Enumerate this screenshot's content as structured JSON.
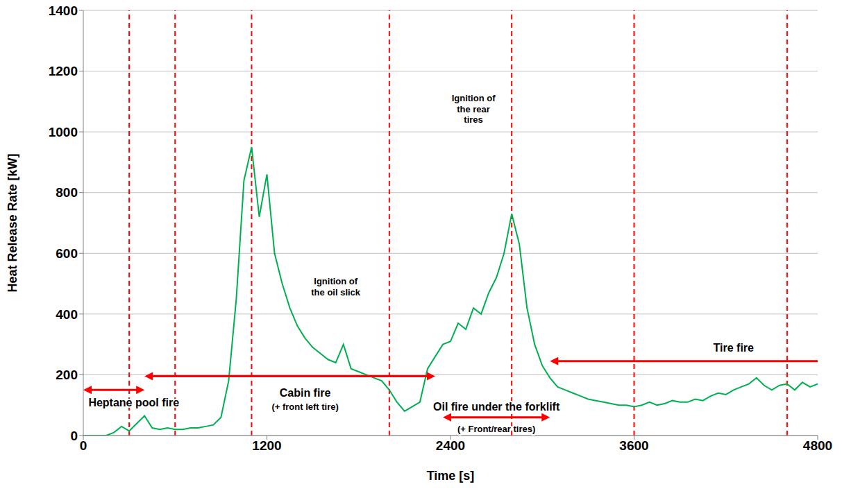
{
  "chart_data": {
    "type": "line",
    "xlabel": "Time [s]",
    "ylabel": "Heat Release Rate [kW]",
    "color": "#00b050",
    "grid": true,
    "xlim": [
      0,
      4800
    ],
    "xticks": [
      0,
      1200,
      2400,
      3600,
      4800
    ],
    "ylim": [
      0,
      1400
    ],
    "yticks": [
      0,
      200,
      400,
      600,
      800,
      1000,
      1200,
      1400
    ],
    "x": [
      0,
      50,
      100,
      150,
      200,
      250,
      300,
      350,
      400,
      450,
      500,
      550,
      600,
      650,
      700,
      750,
      800,
      850,
      900,
      950,
      1000,
      1050,
      1100,
      1150,
      1200,
      1250,
      1300,
      1350,
      1400,
      1450,
      1500,
      1550,
      1600,
      1650,
      1700,
      1750,
      1800,
      1850,
      1900,
      1950,
      2000,
      2050,
      2100,
      2150,
      2200,
      2250,
      2300,
      2350,
      2400,
      2450,
      2500,
      2550,
      2600,
      2650,
      2700,
      2750,
      2800,
      2850,
      2900,
      2950,
      3000,
      3050,
      3100,
      3150,
      3200,
      3250,
      3300,
      3350,
      3400,
      3450,
      3500,
      3550,
      3600,
      3650,
      3700,
      3750,
      3800,
      3850,
      3900,
      3950,
      4000,
      4050,
      4100,
      4150,
      4200,
      4250,
      4300,
      4350,
      4400,
      4450,
      4500,
      4550,
      4600,
      4650,
      4700,
      4750,
      4800
    ],
    "values": [
      0,
      0,
      0,
      0,
      10,
      30,
      15,
      40,
      65,
      25,
      20,
      25,
      20,
      20,
      25,
      25,
      30,
      35,
      60,
      180,
      450,
      840,
      950,
      720,
      860,
      600,
      500,
      420,
      360,
      320,
      290,
      270,
      250,
      240,
      300,
      220,
      210,
      200,
      190,
      180,
      150,
      110,
      80,
      95,
      110,
      220,
      260,
      300,
      310,
      370,
      350,
      420,
      400,
      470,
      520,
      600,
      730,
      630,
      420,
      300,
      230,
      190,
      160,
      150,
      140,
      130,
      120,
      115,
      110,
      105,
      100,
      100,
      95,
      100,
      110,
      100,
      105,
      115,
      110,
      110,
      120,
      115,
      130,
      140,
      135,
      150,
      160,
      170,
      190,
      165,
      150,
      165,
      170,
      150,
      175,
      160,
      170
    ],
    "reference_lines": [
      300,
      600,
      1100,
      2000,
      2800,
      3600,
      4600
    ],
    "annotations": [
      {
        "text": "Heptane pool fire",
        "x": [
          0,
          400
        ],
        "y": 150,
        "text_x": 330,
        "text_y": 108,
        "arrow": "both"
      },
      {
        "text": "Cabin fire",
        "subtext": "(+ front left tire)",
        "x": [
          400,
          2300
        ],
        "y": 195,
        "text_x": 1450,
        "text_y": 140,
        "subtext_y": 95,
        "arrow": "both"
      },
      {
        "text": "Oil fire under the forklift",
        "subtext": "(+ Front/rear tires)",
        "x": [
          2350,
          3050
        ],
        "y": 60,
        "text_x": 2700,
        "text_y": 95,
        "subtext_y": 22,
        "arrow": "both"
      },
      {
        "text": "Tire fire",
        "x": [
          3050,
          4800
        ],
        "y": 245,
        "text_x": 4250,
        "text_y": 290,
        "arrow": "start"
      }
    ],
    "labels": [
      {
        "text": "Ignition of the oil slick",
        "x": 1650,
        "y": 490
      },
      {
        "text": "Ignition of the rear tires",
        "x": 2550,
        "y": 1075
      }
    ]
  }
}
